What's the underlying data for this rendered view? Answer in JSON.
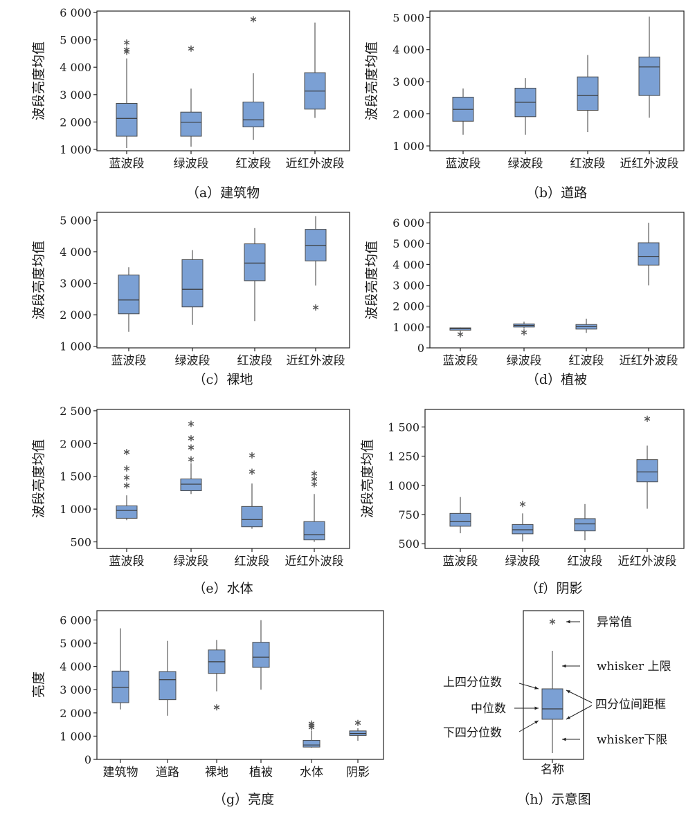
{
  "colors": {
    "box_fill": "#7ba0d4",
    "box_stroke": "#4a4a4a",
    "axis": "#222222",
    "outlier": "#555555"
  },
  "chart_data": [
    {
      "type": "box",
      "caption": "（a）建筑物",
      "ylabel": "波段亮度均值",
      "ylim": [
        950,
        6050
      ],
      "yticks": [
        1000,
        2000,
        3000,
        4000,
        5000,
        6000
      ],
      "ytick_labels": [
        "1 000",
        "2 000",
        "3 000",
        "4 000",
        "5 000",
        "6 000"
      ],
      "categories": [
        "蓝波段",
        "绿波段",
        "红波段",
        "近红外波段"
      ],
      "boxes": [
        {
          "low": 1050,
          "q1": 1480,
          "median": 2130,
          "q3": 2680,
          "high": 4320,
          "outliers": [
            4560,
            4640,
            4900
          ]
        },
        {
          "low": 1100,
          "q1": 1480,
          "median": 1990,
          "q3": 2360,
          "high": 3220,
          "outliers": [
            4680
          ]
        },
        {
          "low": 1350,
          "q1": 1820,
          "median": 2080,
          "q3": 2730,
          "high": 3780,
          "outliers": [
            5750
          ]
        },
        {
          "low": 2150,
          "q1": 2470,
          "median": 3130,
          "q3": 3800,
          "high": 5630,
          "outliers": []
        }
      ]
    },
    {
      "type": "box",
      "caption": "（b）道路",
      "ylabel": "波段亮度均值",
      "ylim": [
        850,
        5200
      ],
      "yticks": [
        1000,
        2000,
        3000,
        4000,
        5000
      ],
      "ytick_labels": [
        "1 000",
        "2 000",
        "3 000",
        "4 000",
        "5 000"
      ],
      "categories": [
        "蓝波段",
        "绿波段",
        "红波段",
        "近红外波段"
      ],
      "boxes": [
        {
          "low": 1350,
          "q1": 1770,
          "median": 2140,
          "q3": 2520,
          "high": 2790,
          "outliers": []
        },
        {
          "low": 1350,
          "q1": 1910,
          "median": 2360,
          "q3": 2800,
          "high": 3110,
          "outliers": []
        },
        {
          "low": 1430,
          "q1": 2110,
          "median": 2570,
          "q3": 3150,
          "high": 3830,
          "outliers": []
        },
        {
          "low": 1880,
          "q1": 2570,
          "median": 3460,
          "q3": 3770,
          "high": 5030,
          "outliers": []
        }
      ]
    },
    {
      "type": "box",
      "caption": "（c）裸地",
      "ylabel": "波段亮度均值",
      "ylim": [
        950,
        5250
      ],
      "yticks": [
        1000,
        2000,
        3000,
        4000,
        5000
      ],
      "ytick_labels": [
        "1 000",
        "2 000",
        "3 000",
        "4 000",
        "5 000"
      ],
      "categories": [
        "蓝波段",
        "绿波段",
        "红波段",
        "近红外波段"
      ],
      "boxes": [
        {
          "low": 1460,
          "q1": 2030,
          "median": 2470,
          "q3": 3260,
          "high": 3510,
          "outliers": []
        },
        {
          "low": 1680,
          "q1": 2250,
          "median": 2810,
          "q3": 3750,
          "high": 4050,
          "outliers": []
        },
        {
          "low": 1800,
          "q1": 3080,
          "median": 3640,
          "q3": 4250,
          "high": 4750,
          "outliers": []
        },
        {
          "low": 2930,
          "q1": 3710,
          "median": 4200,
          "q3": 4710,
          "high": 5130,
          "outliers": [
            2230
          ]
        }
      ]
    },
    {
      "type": "box",
      "caption": "（d）植被",
      "ylabel": "波段亮度均值",
      "ylim": [
        0,
        6500
      ],
      "yticks": [
        0,
        1000,
        2000,
        3000,
        4000,
        5000,
        6000
      ],
      "ytick_labels": [
        "0",
        "1 000",
        "2 000",
        "3 000",
        "4 000",
        "5 000",
        "6 000"
      ],
      "categories": [
        "蓝波段",
        "绿波段",
        "红波段",
        "近红外波段"
      ],
      "boxes": [
        {
          "low": 820,
          "q1": 850,
          "median": 920,
          "q3": 960,
          "high": 980,
          "outliers": [
            650
          ]
        },
        {
          "low": 920,
          "q1": 1000,
          "median": 1080,
          "q3": 1150,
          "high": 1260,
          "outliers": [
            740
          ]
        },
        {
          "low": 720,
          "q1": 900,
          "median": 1020,
          "q3": 1120,
          "high": 1400,
          "outliers": []
        },
        {
          "low": 3000,
          "q1": 3970,
          "median": 4390,
          "q3": 5040,
          "high": 6000,
          "outliers": []
        }
      ]
    },
    {
      "type": "box",
      "caption": "（e）水体",
      "ylabel": "波段亮度均值",
      "ylim": [
        400,
        2520
      ],
      "yticks": [
        500,
        1000,
        1500,
        2000,
        2500
      ],
      "ytick_labels": [
        "500",
        "1 000",
        "1 500",
        "2 000",
        "2 500"
      ],
      "categories": [
        "蓝波段",
        "绿波段",
        "红波段",
        "近红外波段"
      ],
      "boxes": [
        {
          "low": 830,
          "q1": 860,
          "median": 980,
          "q3": 1050,
          "high": 1210,
          "outliers": [
            1360,
            1480,
            1620,
            1870
          ]
        },
        {
          "low": 1230,
          "q1": 1280,
          "median": 1380,
          "q3": 1460,
          "high": 1700,
          "outliers": [
            1760,
            1940,
            2080,
            2300
          ]
        },
        {
          "low": 700,
          "q1": 730,
          "median": 840,
          "q3": 1040,
          "high": 1390,
          "outliers": [
            1570,
            1820
          ]
        },
        {
          "low": 500,
          "q1": 530,
          "median": 610,
          "q3": 810,
          "high": 1230,
          "outliers": [
            1380,
            1460,
            1540
          ]
        }
      ]
    },
    {
      "type": "box",
      "caption": "（f）阴影",
      "ylabel": "波段亮度均值",
      "ylim": [
        460,
        1650
      ],
      "yticks": [
        500,
        750,
        1000,
        1250,
        1500
      ],
      "ytick_labels": [
        "500",
        "750",
        "1 000",
        "1 250",
        "1 500"
      ],
      "categories": [
        "蓝波段",
        "绿波段",
        "红波段",
        "近红外波段"
      ],
      "boxes": [
        {
          "low": 590,
          "q1": 650,
          "median": 690,
          "q3": 760,
          "high": 900,
          "outliers": []
        },
        {
          "low": 520,
          "q1": 585,
          "median": 620,
          "q3": 665,
          "high": 760,
          "outliers": [
            840
          ]
        },
        {
          "low": 530,
          "q1": 610,
          "median": 670,
          "q3": 715,
          "high": 840,
          "outliers": []
        },
        {
          "low": 800,
          "q1": 1030,
          "median": 1115,
          "q3": 1220,
          "high": 1340,
          "outliers": [
            1570
          ]
        }
      ]
    },
    {
      "type": "box",
      "caption": "（g）亮度",
      "ylabel": "亮度",
      "ylim": [
        0,
        6400
      ],
      "yticks": [
        0,
        1000,
        2000,
        3000,
        4000,
        5000,
        6000
      ],
      "ytick_labels": [
        "0",
        "1 000",
        "2 000",
        "3 000",
        "4 000",
        "5 000",
        "6 000"
      ],
      "categories": [
        "建筑物",
        "道路",
        "裸地",
        "植被",
        "水体",
        "阴影"
      ],
      "boxes": [
        {
          "low": 2150,
          "q1": 2440,
          "median": 3100,
          "q3": 3800,
          "high": 5640,
          "outliers": []
        },
        {
          "low": 1880,
          "q1": 2570,
          "median": 3430,
          "q3": 3780,
          "high": 5100,
          "outliers": []
        },
        {
          "low": 2930,
          "q1": 3700,
          "median": 4200,
          "q3": 4710,
          "high": 5140,
          "outliers": [
            2240
          ]
        },
        {
          "low": 3000,
          "q1": 3960,
          "median": 4400,
          "q3": 5040,
          "high": 5990,
          "outliers": []
        },
        {
          "low": 500,
          "q1": 530,
          "median": 620,
          "q3": 820,
          "high": 1230,
          "outliers": [
            1380,
            1460,
            1540
          ]
        },
        {
          "low": 800,
          "q1": 1030,
          "median": 1115,
          "q3": 1225,
          "high": 1340,
          "outliers": [
            1570
          ]
        }
      ]
    }
  ],
  "legend": {
    "caption": "（h）示意图",
    "category": "名称",
    "labels": {
      "outlier": "异常值",
      "whisker_upper": "whisker 上限",
      "q3": "上四分位数",
      "median": "中位数",
      "iqr_box": "四分位间距框",
      "q1": "下四分位数",
      "whisker_lower": "whisker下限"
    }
  }
}
